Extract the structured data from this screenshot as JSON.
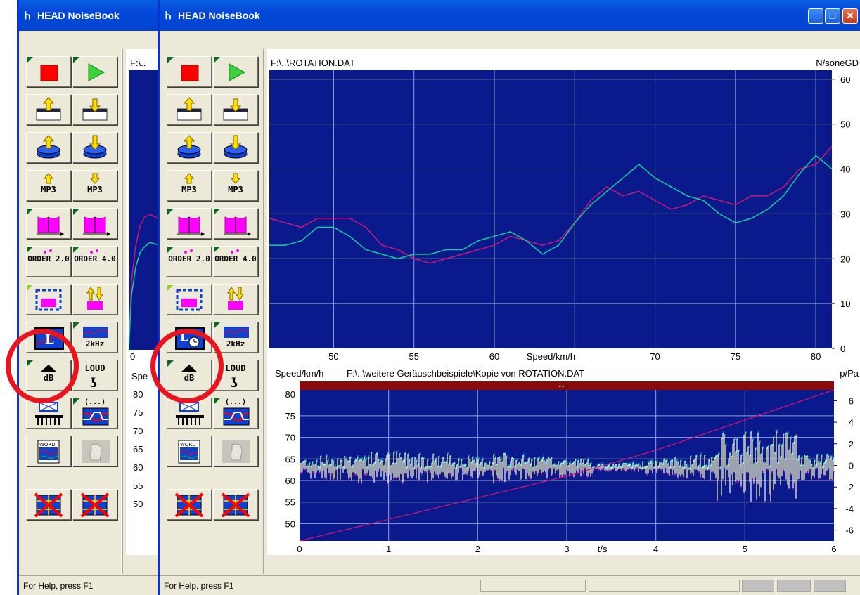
{
  "window_back": {
    "title": "HEAD NoiseBook",
    "partial_path": "F:\\..",
    "axis_label_partial": "Spe",
    "y_ticks": [
      "80",
      "75",
      "70",
      "65",
      "60",
      "55",
      "50"
    ],
    "x_tick": "0",
    "status": "For Help, press F1"
  },
  "window_front": {
    "title": "HEAD NoiseBook",
    "status": "For Help, press F1",
    "title_buttons": {
      "minimize": "_",
      "maximize": "□",
      "close": "✕"
    }
  },
  "toolbar": {
    "buttons": [
      {
        "name": "stop-button",
        "icon": "red-square-stop-icon"
      },
      {
        "name": "play-button",
        "icon": "green-triangle-play-icon"
      },
      {
        "name": "import-window-button",
        "icon": "arrow-up-window-icon"
      },
      {
        "name": "export-window-button",
        "icon": "arrow-down-window-icon"
      },
      {
        "name": "upload-disk-button",
        "icon": "arrow-up-disk-icon"
      },
      {
        "name": "download-disk-button",
        "icon": "arrow-down-disk-icon"
      },
      {
        "name": "mp3-import-button",
        "label": "MP3"
      },
      {
        "name": "mp3-export-button",
        "label": "MP3"
      },
      {
        "name": "analysis-1-button",
        "icon": "magenta-spectrum-icon"
      },
      {
        "name": "analysis-2-button",
        "icon": "magenta-spectrum-icon"
      },
      {
        "name": "order-2-button",
        "label": "ORDER 2.0"
      },
      {
        "name": "order-4-button",
        "label": "ORDER 4.0"
      },
      {
        "name": "select-range-button",
        "icon": "dashed-box-icon"
      },
      {
        "name": "swap-button",
        "icon": "up-down-arrows-icon"
      },
      {
        "name": "level-button",
        "icon": "L-graph-icon"
      },
      {
        "name": "2khz-button",
        "label": "2kHz"
      },
      {
        "name": "db-button",
        "label": "dB"
      },
      {
        "name": "loud-button",
        "label": "LOUD"
      },
      {
        "name": "filter-bank-button",
        "icon": "filter-bank-icon"
      },
      {
        "name": "filter-curve-button",
        "label": "(...)"
      },
      {
        "name": "word-button",
        "label": "WORD"
      },
      {
        "name": "head-button",
        "icon": "head-icon"
      },
      {
        "name": "clear-1-button",
        "icon": "red-x-grid-icon"
      },
      {
        "name": "clear-2-button",
        "icon": "red-x-grid-icon"
      }
    ]
  },
  "top_chart": {
    "file": "F:\\..\\ROTATION.DAT",
    "unit": "N/soneGD",
    "xlabel": "Speed/km/h",
    "x_ticks": [
      "50",
      "55",
      "60",
      "70",
      "75",
      "80"
    ],
    "y_ticks": [
      "60",
      "50",
      "40",
      "30",
      "20",
      "10",
      "0"
    ]
  },
  "bottom_chart": {
    "left_label": "Speed/km/h",
    "file": "F:\\..\\weitere Geräuschbeispiele\\Kopie von ROTATION.DAT",
    "unit": "p/Pa",
    "xlabel": "t/s",
    "x_ticks": [
      "0",
      "1",
      "2",
      "3",
      "4",
      "5",
      "6"
    ],
    "left_ticks": [
      "80",
      "75",
      "70",
      "65",
      "60",
      "55",
      "50"
    ],
    "right_ticks": [
      "6",
      "4",
      "2",
      "0",
      "-2",
      "-4",
      "-6"
    ]
  },
  "colors": {
    "plot_bg": "#0a1a8c",
    "grid": "#8fa0d8",
    "series1": "#d0147a",
    "series2": "#10d0a0",
    "wave": "#ffffc8"
  },
  "chart_data": [
    {
      "type": "line",
      "title": "F:\\..\\ROTATION.DAT",
      "xlabel": "Speed/km/h",
      "ylabel": "N/soneGD",
      "xlim": [
        46,
        81
      ],
      "ylim": [
        0,
        62
      ],
      "grid": true,
      "series": [
        {
          "color": "#d0147a",
          "x": [
            46,
            47,
            48,
            49,
            50,
            51,
            52,
            53,
            54,
            55,
            56,
            57,
            58,
            59,
            60,
            61,
            62,
            63,
            64,
            65,
            66,
            67,
            68,
            69,
            70,
            71,
            72,
            73,
            74,
            75,
            76,
            77,
            78,
            79,
            80,
            81
          ],
          "values": [
            29,
            28,
            27,
            29,
            29,
            29,
            27,
            23,
            22,
            20,
            19,
            20,
            21,
            22,
            23,
            25,
            24,
            23,
            24,
            28,
            33,
            36,
            34,
            35,
            33,
            31,
            32,
            34,
            33,
            32,
            34,
            34,
            36,
            40,
            41,
            45
          ]
        },
        {
          "color": "#10d0a0",
          "x": [
            46,
            47,
            48,
            49,
            50,
            51,
            52,
            53,
            54,
            55,
            56,
            57,
            58,
            59,
            60,
            61,
            62,
            63,
            64,
            65,
            66,
            67,
            68,
            69,
            70,
            71,
            72,
            73,
            74,
            75,
            76,
            77,
            78,
            79,
            80,
            81
          ],
          "values": [
            23,
            23,
            24,
            27,
            27,
            25,
            22,
            21,
            20,
            21,
            21,
            22,
            22,
            24,
            25,
            26,
            24,
            21,
            23,
            28,
            32,
            35,
            38,
            41,
            38,
            36,
            34,
            33,
            30,
            28,
            29,
            31,
            34,
            39,
            43,
            40
          ]
        }
      ]
    },
    {
      "type": "line",
      "title": "F:\\..\\weitere Geräuschbeispiele\\Kopie von ROTATION.DAT",
      "xlabel": "t/s",
      "ylabel": "Speed/km/h",
      "y2label": "p/Pa",
      "xlim": [
        0,
        6
      ],
      "ylim": [
        46,
        81
      ],
      "y2lim": [
        -7,
        7
      ],
      "grid": true,
      "series": [
        {
          "color": "#d0147a",
          "x": [
            0,
            1,
            2,
            3,
            4,
            5,
            6
          ],
          "values": [
            46,
            51,
            56,
            61,
            67,
            74,
            81
          ]
        }
      ]
    }
  ]
}
